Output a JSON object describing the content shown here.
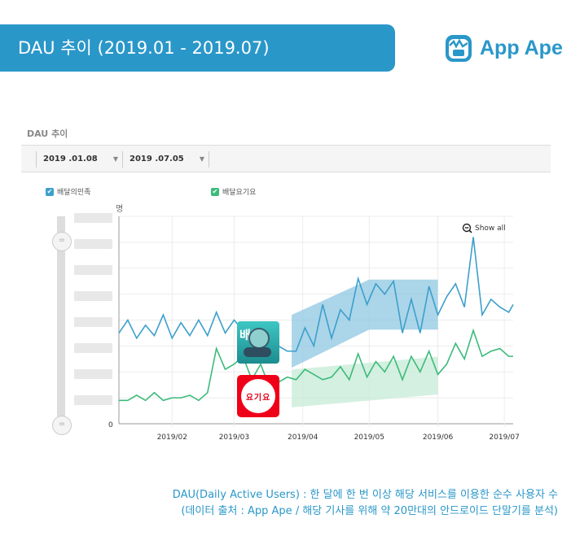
{
  "header": {
    "title": "DAU 추이 (2019.01 - 2019.07)",
    "brand": "App Ape"
  },
  "section_title": "DAU 추이",
  "date_range": {
    "start": "2019 .01.08",
    "end": "2019 .07.05"
  },
  "legend": [
    {
      "label": "배달의민족",
      "color": "#3d9fcc"
    },
    {
      "label": "배달요기요",
      "color": "#3cbb7a"
    }
  ],
  "show_all": "Show all",
  "footer": {
    "line1": "DAU(Daily Active Users) : 한 달에 한 번 이상 해당 서비스를 이용한 순수 사용자 수",
    "line2": "(데이터 출처 : App Ape / 해당 기사를 위해 약 20만대의 안드로이드 단말기를 분석)"
  },
  "app_icons": {
    "baemin_text": "배민",
    "yogiyo_text": "요기요"
  },
  "chart_data": {
    "type": "line",
    "ylabel": "명",
    "y_tick_labels_visible": [
      "0"
    ],
    "y_tick_labels_hidden": true,
    "ylim": [
      0,
      8
    ],
    "xlim": [
      "2019-01-08",
      "2019-07-05"
    ],
    "x_ticks": [
      "2019/02",
      "2019/03",
      "2019/04",
      "2019/05",
      "2019/06",
      "2019/07"
    ],
    "grid": true,
    "x": [
      "2019-01-08",
      "2019-01-12",
      "2019-01-16",
      "2019-01-20",
      "2019-01-24",
      "2019-01-28",
      "2019-02-01",
      "2019-02-05",
      "2019-02-09",
      "2019-02-13",
      "2019-02-17",
      "2019-02-21",
      "2019-02-25",
      "2019-03-01",
      "2019-03-05",
      "2019-03-09",
      "2019-03-13",
      "2019-03-17",
      "2019-03-21",
      "2019-03-25",
      "2019-03-29",
      "2019-04-02",
      "2019-04-06",
      "2019-04-10",
      "2019-04-14",
      "2019-04-18",
      "2019-04-22",
      "2019-04-26",
      "2019-04-30",
      "2019-05-04",
      "2019-05-08",
      "2019-05-12",
      "2019-05-16",
      "2019-05-20",
      "2019-05-24",
      "2019-05-28",
      "2019-06-01",
      "2019-06-05",
      "2019-06-09",
      "2019-06-13",
      "2019-06-17",
      "2019-06-21",
      "2019-06-25",
      "2019-06-29",
      "2019-07-03",
      "2019-07-05"
    ],
    "series": [
      {
        "name": "배달의민족",
        "color": "#3d9fcc",
        "values": [
          3.5,
          4.0,
          3.3,
          3.8,
          3.4,
          4.2,
          3.3,
          3.9,
          3.4,
          4.0,
          3.4,
          4.3,
          3.5,
          4.0,
          3.6,
          3.8,
          3.3,
          3.7,
          3.0,
          2.8,
          2.8,
          3.7,
          3.0,
          4.6,
          3.3,
          4.4,
          4.0,
          5.6,
          4.6,
          5.4,
          5.0,
          5.5,
          3.5,
          4.8,
          3.5,
          5.3,
          4.2,
          4.9,
          5.4,
          4.5,
          7.2,
          4.2,
          4.8,
          4.5,
          4.3,
          4.6
        ]
      },
      {
        "name": "배달요기요",
        "color": "#3cbb7a",
        "values": [
          0.9,
          0.9,
          1.1,
          0.9,
          1.2,
          0.9,
          1.0,
          1.0,
          1.1,
          0.9,
          1.2,
          2.9,
          2.1,
          2.3,
          2.6,
          1.7,
          2.3,
          1.4,
          1.6,
          1.8,
          1.7,
          2.1,
          1.9,
          1.7,
          1.8,
          2.2,
          1.7,
          2.7,
          1.8,
          2.4,
          2.0,
          2.6,
          1.7,
          2.6,
          2.0,
          2.8,
          1.9,
          2.3,
          3.1,
          2.5,
          3.6,
          2.6,
          2.8,
          2.9,
          2.6,
          2.6
        ]
      }
    ],
    "bands": [
      {
        "series": "배달의민족",
        "color": "#8fc7e2",
        "points": [
          {
            "x": "2019-03-27",
            "low": 2.16,
            "high": 4.2
          },
          {
            "x": "2019-05-01",
            "low": 3.63,
            "high": 5.56
          },
          {
            "x": "2019-06-01",
            "low": 3.63,
            "high": 5.56
          }
        ]
      },
      {
        "series": "배달요기요",
        "color": "#c6ebd7",
        "points": [
          {
            "x": "2019-03-27",
            "low": 0.63,
            "high": 2.09
          },
          {
            "x": "2019-06-01",
            "low": 1.13,
            "high": 2.59
          }
        ]
      }
    ]
  }
}
